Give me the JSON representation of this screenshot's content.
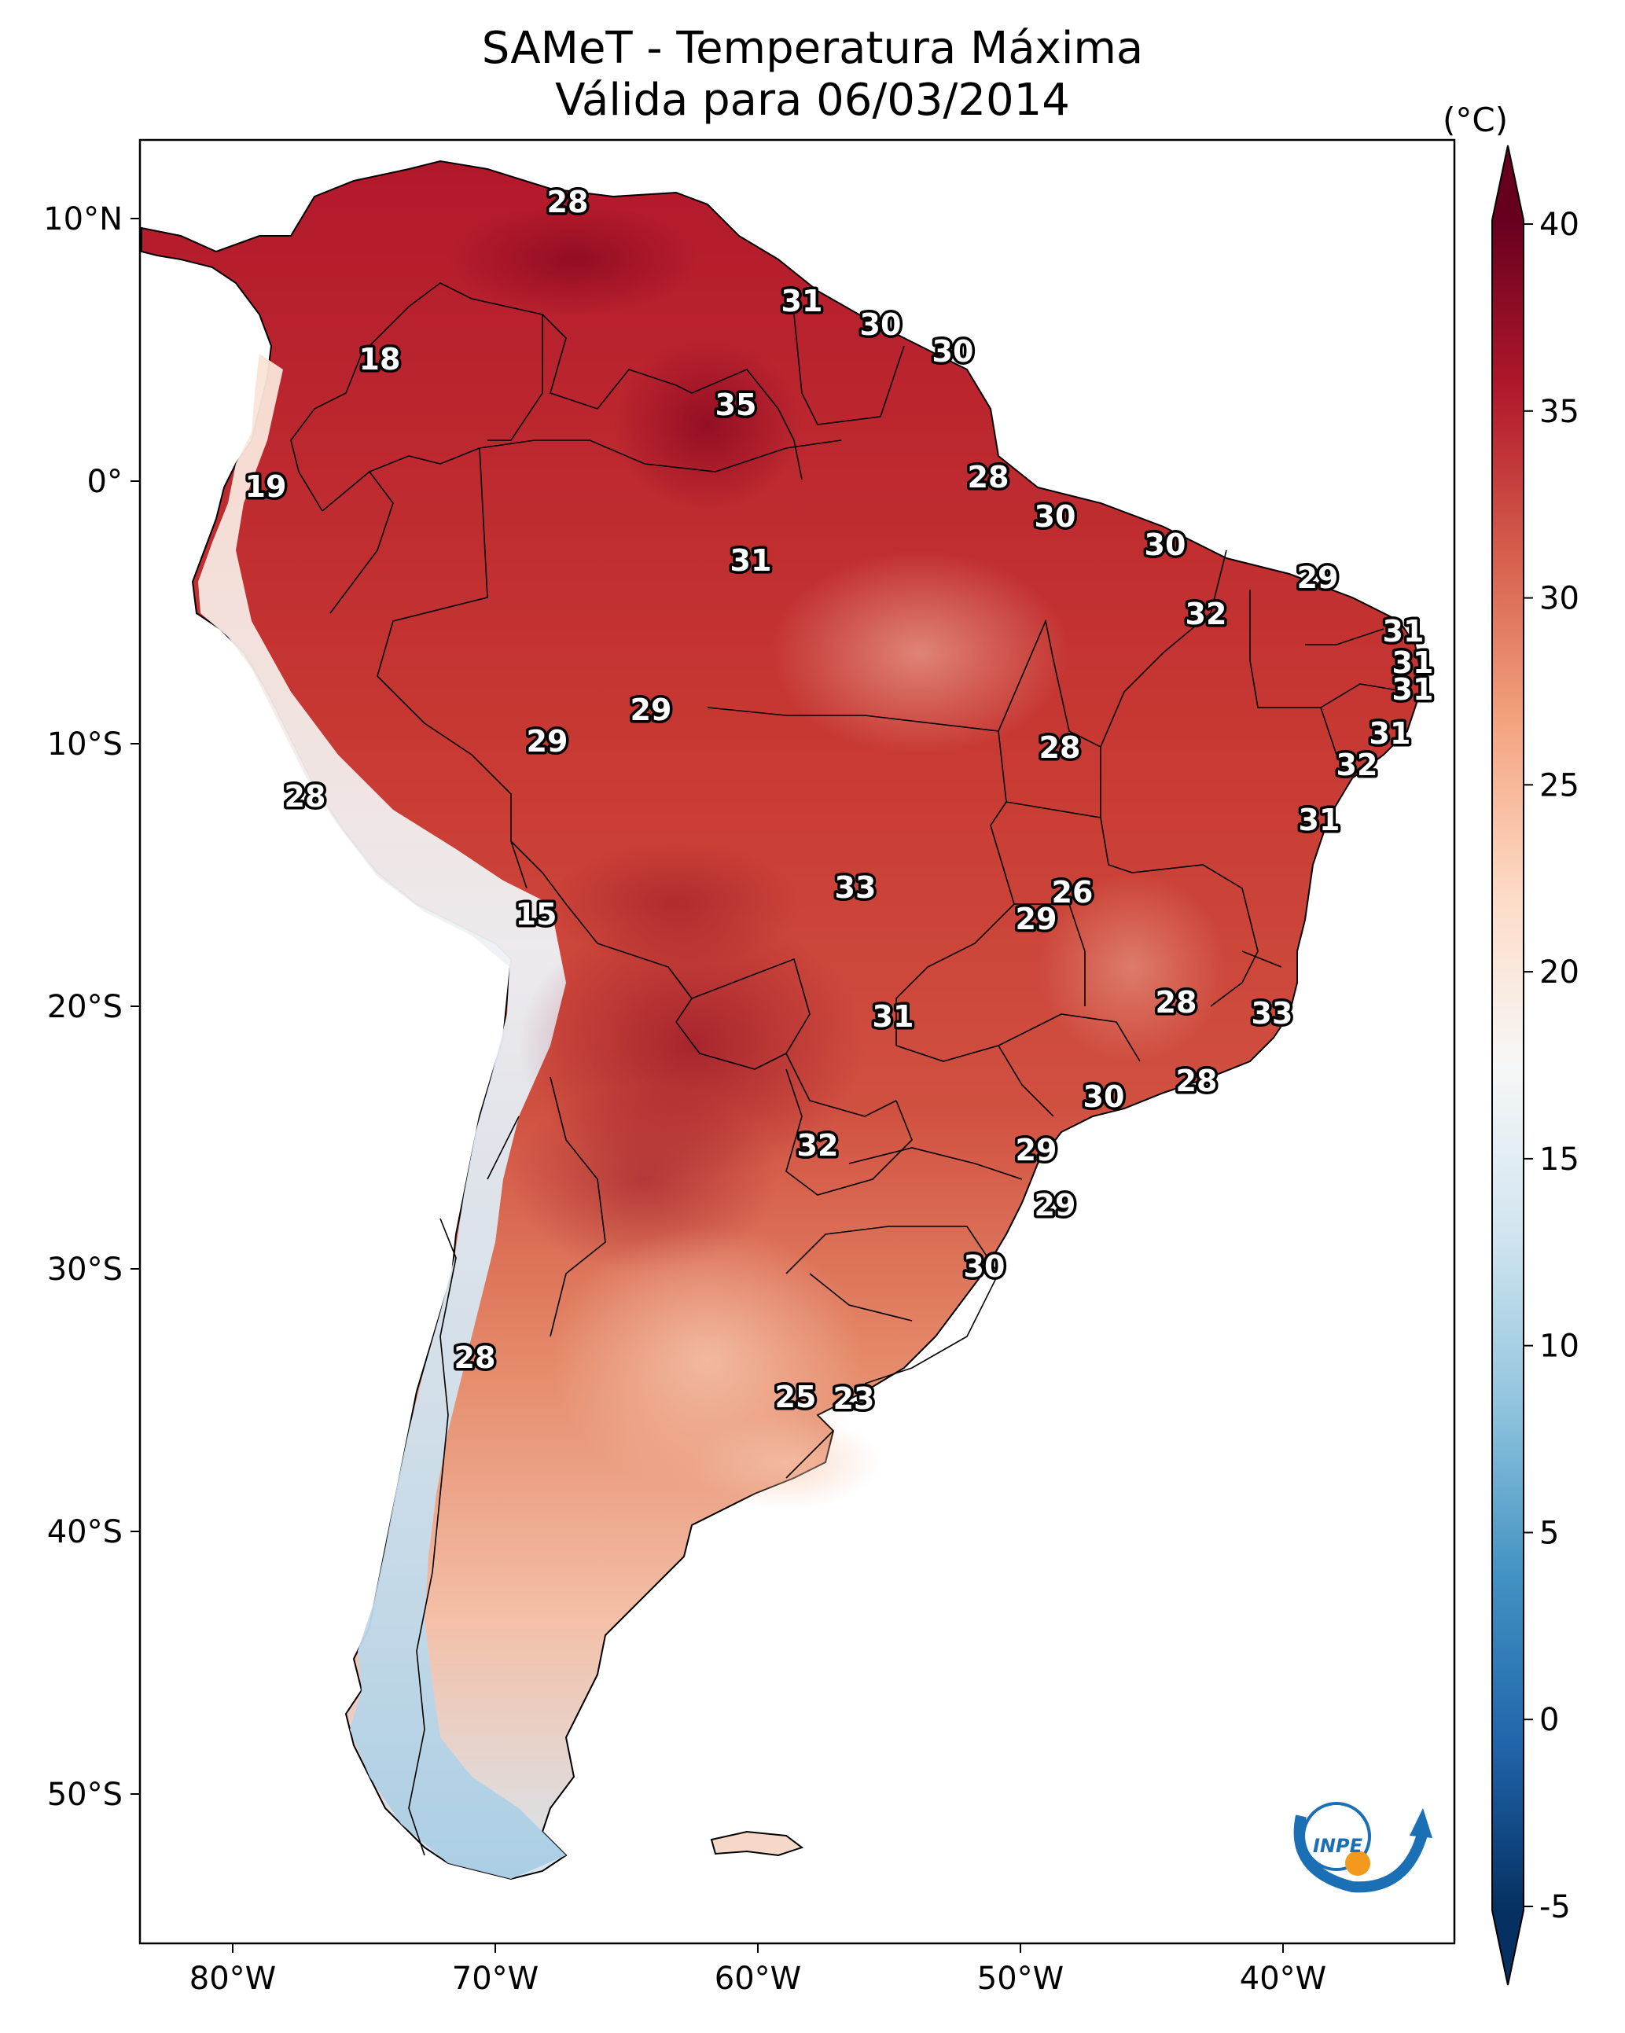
{
  "title": {
    "line1": "SAMeT - Temperatura Máxima",
    "line2": "Válida para 06/03/2014"
  },
  "colorbar": {
    "unit": "(°C)",
    "ticks": [
      "40",
      "35",
      "30",
      "25",
      "20",
      "15",
      "10",
      "5",
      "0",
      "-5"
    ],
    "colors": [
      "#053061",
      "#2166ac",
      "#4393c3",
      "#92c5de",
      "#d1e5f0",
      "#f7f7f7",
      "#fddbc7",
      "#f4a582",
      "#d6604d",
      "#b2182b",
      "#67001f"
    ]
  },
  "axes": {
    "lon_labels": [
      "80°W",
      "70°W",
      "60°W",
      "50°W",
      "40°W"
    ],
    "lat_labels": [
      "10°N",
      "0°",
      "10°S",
      "20°S",
      "30°S",
      "40°S",
      "50°S"
    ]
  },
  "logo": {
    "text": "INPE"
  },
  "stations": [
    {
      "value": "28"
    },
    {
      "value": "31"
    },
    {
      "value": "30"
    },
    {
      "value": "30"
    },
    {
      "value": "18"
    },
    {
      "value": "35"
    },
    {
      "value": "19"
    },
    {
      "value": "28"
    },
    {
      "value": "30"
    },
    {
      "value": "31"
    },
    {
      "value": "30"
    },
    {
      "value": "29"
    },
    {
      "value": "32"
    },
    {
      "value": "31"
    },
    {
      "value": "31"
    },
    {
      "value": "31"
    },
    {
      "value": "29"
    },
    {
      "value": "29"
    },
    {
      "value": "28"
    },
    {
      "value": "31"
    },
    {
      "value": "32"
    },
    {
      "value": "28"
    },
    {
      "value": "31"
    },
    {
      "value": "15"
    },
    {
      "value": "33"
    },
    {
      "value": "26"
    },
    {
      "value": "29"
    },
    {
      "value": "28"
    },
    {
      "value": "33"
    },
    {
      "value": "31"
    },
    {
      "value": "28"
    },
    {
      "value": "30"
    },
    {
      "value": "32"
    },
    {
      "value": "29"
    },
    {
      "value": "29"
    },
    {
      "value": "30"
    },
    {
      "value": "28"
    },
    {
      "value": "25"
    },
    {
      "value": "23"
    }
  ]
}
